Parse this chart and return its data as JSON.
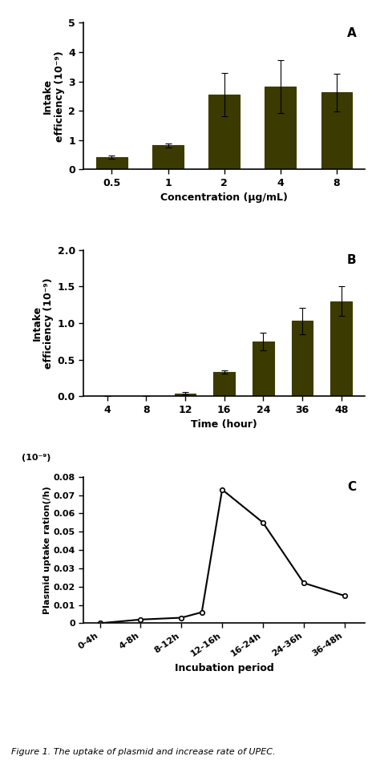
{
  "panel_A": {
    "categories": [
      "0.5",
      "1",
      "2",
      "4",
      "8"
    ],
    "values": [
      0.42,
      0.82,
      2.55,
      2.82,
      2.62
    ],
    "errors": [
      0.05,
      0.07,
      0.75,
      0.9,
      0.65
    ],
    "xlabel": "Concentration (μg/mL)",
    "ylabel": "Intake\nefficiency (10⁻⁹)",
    "ylim": [
      0,
      5
    ],
    "yticks": [
      0,
      1,
      2,
      3,
      4,
      5
    ],
    "label": "A",
    "bar_color": "#3b3a00",
    "bar_width": 0.55
  },
  "panel_B": {
    "categories": [
      "4",
      "8",
      "12",
      "16",
      "24",
      "36",
      "48"
    ],
    "values": [
      0.0,
      0.0,
      0.04,
      0.33,
      0.75,
      1.03,
      1.3
    ],
    "errors": [
      0.0,
      0.0,
      0.02,
      0.02,
      0.12,
      0.18,
      0.2
    ],
    "xlabel": "Time (hour)",
    "ylabel": "Intake\nefficiency (10⁻⁹)",
    "ylim": [
      0,
      2.0
    ],
    "yticks": [
      0.0,
      0.5,
      1.0,
      1.5,
      2.0
    ],
    "label": "B",
    "bar_color": "#3b3a00",
    "bar_width": 0.55
  },
  "panel_C": {
    "x_labels": [
      "0-4h",
      "4-8h",
      "8-12h",
      "12-16h",
      "16-24h",
      "24-36h",
      "36-48h"
    ],
    "x_vals_plot": [
      0,
      1,
      2,
      2.5,
      3,
      4,
      5,
      6
    ],
    "y_vals_plot": [
      0.0,
      0.002,
      0.003,
      0.006,
      0.073,
      0.055,
      0.022,
      0.015
    ],
    "x_ticks": [
      0,
      1,
      2,
      3,
      4,
      5,
      6
    ],
    "xlabel": "Incubation period",
    "ylabel": "Plasmid uptake ration(/h)",
    "ylim": [
      0,
      0.08
    ],
    "yticks": [
      0,
      0.01,
      0.02,
      0.03,
      0.04,
      0.05,
      0.06,
      0.07,
      0.08
    ],
    "ytick_labels": [
      "0",
      "0.01",
      "0.02",
      "0.03",
      "0.04",
      "0.05",
      "0.06",
      "0.07",
      "0.08"
    ],
    "label": "C",
    "exponent_label": "(10⁻⁹)",
    "line_color": "#000000"
  },
  "figure_caption": "Figure 1. The uptake of plasmid and increase rate of UPEC."
}
